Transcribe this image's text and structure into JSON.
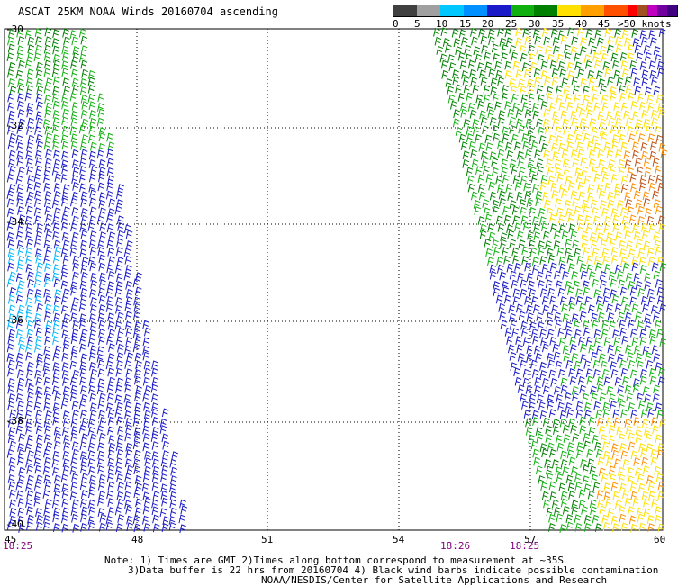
{
  "title": "ASCAT 25KM NOAA Winds 20160704 ascending",
  "scale": {
    "colors": [
      "#404040",
      "#a0a0a0",
      "#00c8ff",
      "#0090ff",
      "#1a1ac8",
      "#10b010",
      "#008000",
      "#ffe000",
      "#ffa000",
      "#ff5000",
      "#ff0000",
      "#a05020",
      "#c000c0",
      "#7000a0",
      "#400080"
    ],
    "labels": [
      "0",
      "5",
      "10",
      "15",
      "20",
      "25",
      "30",
      "35",
      "40",
      "45",
      ">50 knots"
    ]
  },
  "latitudes": [
    "-30",
    "-32",
    "-34",
    "-36",
    "-38",
    "-40"
  ],
  "longitudes": [
    "45",
    "48",
    "51",
    "54",
    "57",
    "60"
  ],
  "times": [
    "18:25",
    "18:26",
    "18:25"
  ],
  "notes": {
    "line1": "Note: 1) Times are GMT 2)Times along bottom correspond to measurement at ~35S",
    "line2": "3)Data buffer is 22 hrs from 20160704 4) Black wind barbs indicate possible contamination",
    "line3": "NOAA/NESDIS/Center for Satellite Applications and Research"
  }
}
